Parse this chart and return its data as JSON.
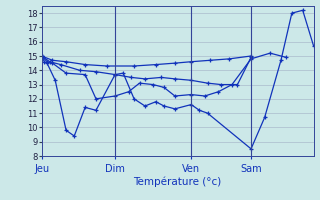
{
  "background_color": "#cce8e8",
  "grid_color": "#aabbcc",
  "line_color": "#1133bb",
  "xlabel": "Température (°c)",
  "ylim": [
    8,
    18.5
  ],
  "yticks": [
    8,
    9,
    10,
    11,
    12,
    13,
    14,
    15,
    16,
    17,
    18
  ],
  "day_labels": [
    "Jeu",
    "Dim",
    "Ven",
    "Sam"
  ],
  "day_positions": [
    0.0,
    0.27,
    0.55,
    0.77
  ],
  "vline_positions": [
    0.27,
    0.55,
    0.77
  ],
  "series": [
    {
      "x": [
        0.0,
        0.01,
        0.02,
        0.05,
        0.09,
        0.12,
        0.16,
        0.2,
        0.27,
        0.3,
        0.34,
        0.38,
        0.42,
        0.45,
        0.49,
        0.55,
        0.58,
        0.61,
        0.77,
        0.82,
        0.88,
        0.92,
        0.96,
        1.0
      ],
      "y": [
        15.0,
        14.6,
        14.5,
        13.3,
        9.8,
        9.4,
        11.4,
        11.2,
        13.7,
        13.8,
        12.0,
        11.5,
        11.8,
        11.5,
        11.3,
        11.6,
        11.2,
        11.0,
        8.5,
        10.7,
        14.7,
        18.0,
        18.2,
        15.7
      ]
    },
    {
      "x": [
        0.0,
        0.02,
        0.04,
        0.09,
        0.16,
        0.2,
        0.27,
        0.32,
        0.36,
        0.41,
        0.45,
        0.49,
        0.55,
        0.6,
        0.65,
        0.7,
        0.77,
        0.84,
        0.9
      ],
      "y": [
        15.0,
        14.6,
        14.5,
        13.8,
        13.7,
        12.0,
        12.2,
        12.5,
        13.1,
        13.0,
        12.8,
        12.2,
        12.3,
        12.2,
        12.5,
        13.0,
        14.8,
        15.2,
        14.9
      ]
    },
    {
      "x": [
        0.0,
        0.03,
        0.07,
        0.14,
        0.2,
        0.27,
        0.33,
        0.38,
        0.44,
        0.49,
        0.55,
        0.61,
        0.66,
        0.72,
        0.77
      ],
      "y": [
        15.0,
        14.6,
        14.4,
        14.0,
        13.9,
        13.7,
        13.5,
        13.4,
        13.5,
        13.4,
        13.3,
        13.1,
        13.0,
        13.0,
        14.9
      ]
    },
    {
      "x": [
        0.0,
        0.04,
        0.09,
        0.16,
        0.24,
        0.34,
        0.42,
        0.49,
        0.55,
        0.62,
        0.69,
        0.77
      ],
      "y": [
        15.0,
        14.7,
        14.6,
        14.4,
        14.3,
        14.3,
        14.4,
        14.5,
        14.6,
        14.7,
        14.8,
        15.0
      ]
    }
  ]
}
